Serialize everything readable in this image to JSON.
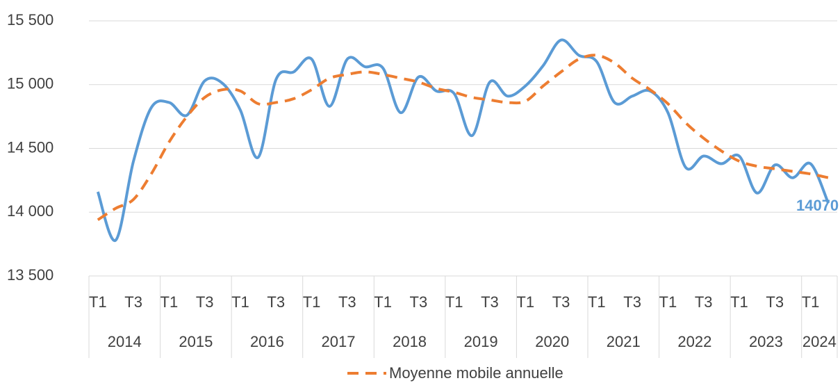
{
  "chart_data": {
    "type": "line",
    "categories": [
      "T1",
      null,
      "T3",
      null,
      "T1",
      null,
      "T3",
      null,
      "T1",
      null,
      "T3",
      null,
      "T1",
      null,
      "T3",
      null,
      "T1",
      null,
      "T3",
      null,
      "T1",
      null,
      "T3",
      null,
      "T1",
      null,
      "T3",
      null,
      "T1",
      null,
      "T3",
      null,
      "T1",
      null,
      "T3",
      null,
      "T1",
      null,
      "T3",
      null,
      "T1",
      null
    ],
    "category_groups": [
      "2014",
      null,
      null,
      null,
      "2015",
      null,
      null,
      null,
      "2016",
      null,
      null,
      null,
      "2017",
      null,
      null,
      null,
      "2018",
      null,
      null,
      null,
      "2019",
      null,
      null,
      null,
      "2020",
      null,
      null,
      null,
      "2021",
      null,
      null,
      null,
      "2022",
      null,
      null,
      null,
      "2023",
      null,
      null,
      null,
      "2024",
      null
    ],
    "series": [
      {
        "color": "#5b9bd5",
        "dashed": false,
        "show_last_label": true,
        "values": [
          14160,
          13780,
          14400,
          14820,
          14860,
          14760,
          15030,
          15010,
          14800,
          14430,
          15040,
          15100,
          15200,
          14830,
          15200,
          15140,
          15130,
          14780,
          15060,
          14950,
          14930,
          14600,
          15020,
          14910,
          14990,
          15150,
          15350,
          15230,
          15180,
          14860,
          14910,
          14950,
          14780,
          14350,
          14440,
          14380,
          14440,
          14150,
          14370,
          14270,
          14380,
          14070
        ]
      },
      {
        "name": "Moyenne mobile annuelle",
        "color": "#ed7d31",
        "dashed": true,
        "show_last_label": false,
        "values": [
          13940,
          14030,
          14100,
          14300,
          14550,
          14750,
          14900,
          14960,
          14950,
          14850,
          14860,
          14890,
          14960,
          15050,
          15080,
          15100,
          15080,
          15050,
          15020,
          14970,
          14940,
          14900,
          14880,
          14860,
          14870,
          14990,
          15100,
          15200,
          15230,
          15170,
          15050,
          14960,
          14850,
          14700,
          14580,
          14480,
          14400,
          14360,
          14340,
          14320,
          14300,
          14270
        ]
      }
    ],
    "ylim": [
      13500,
      15500
    ],
    "yticks": [
      {
        "value": 13500,
        "label": "13 500"
      },
      {
        "value": 14000,
        "label": "14 000"
      },
      {
        "value": 14500,
        "label": "14 500"
      },
      {
        "value": 15000,
        "label": "15 000"
      },
      {
        "value": 15500,
        "label": "15 500"
      }
    ],
    "grid": true,
    "legend": "bottom"
  }
}
